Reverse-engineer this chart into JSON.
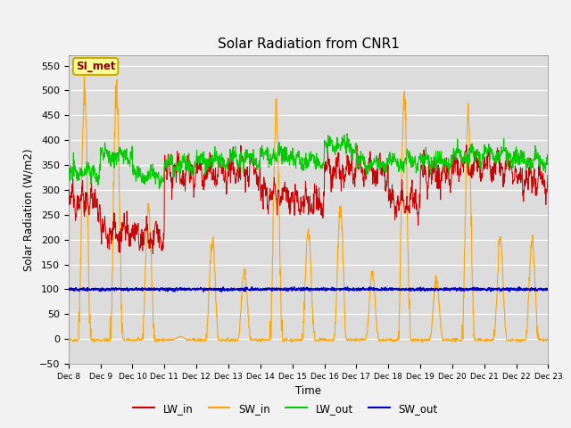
{
  "title": "Solar Radiation from CNR1",
  "xlabel": "Time",
  "ylabel": "Solar Radiation (W/m2)",
  "ylim": [
    -50,
    570
  ],
  "yticks": [
    -50,
    0,
    50,
    100,
    150,
    200,
    250,
    300,
    350,
    400,
    450,
    500,
    550
  ],
  "xtick_labels": [
    "Dec 8",
    "Dec 9",
    "Dec 10",
    "Dec 11",
    "Dec 12",
    "Dec 13",
    "Dec 14",
    "Dec 15",
    "Dec 16",
    "Dec 17",
    "Dec 18",
    "Dec 19",
    "Dec 20",
    "Dec 21",
    "Dec 22",
    "Dec 23"
  ],
  "colors": {
    "LW_in": "#cc0000",
    "SW_in": "#ffa500",
    "LW_out": "#00cc00",
    "SW_out": "#0000cc",
    "fig_bg": "#f2f2f2",
    "plot_bg": "#dcdcdc"
  },
  "annotation_text": "SI_met",
  "annotation_bg": "#ffff99",
  "annotation_border": "#ccaa00",
  "legend_labels": [
    "LW_in",
    "SW_in",
    "LW_out",
    "SW_out"
  ]
}
